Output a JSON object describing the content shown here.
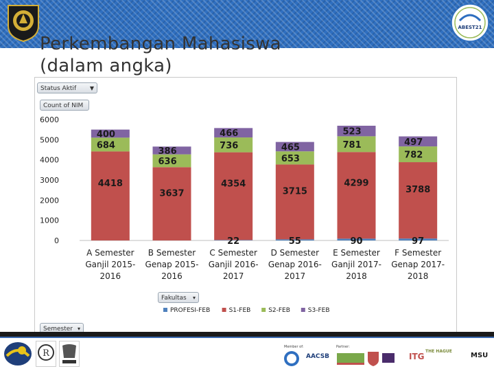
{
  "header": {
    "title_line1": "Perkembangan Mahasiswa",
    "title_line2": "(dalam angka)",
    "right_logo_text": "ABEST21"
  },
  "filters": {
    "status": "Status Aktif",
    "count": "Count of NIM",
    "fakultas": "Fakultas",
    "semester": "Semester"
  },
  "chart_data": {
    "type": "bar",
    "stacked": true,
    "categories": [
      "A Semester Ganjil 2015-2016",
      "B Semester Genap 2015-2016",
      "C Semester Ganjil 2016-2017",
      "D Semester Genap 2016-2017",
      "E Semester Ganjil 2017-2018",
      "F Semester Genap 2017-2018"
    ],
    "category_lines": [
      [
        "A Semester",
        "Ganjil 2015-",
        "2016"
      ],
      [
        "B Semester",
        "Genap 2015-",
        "2016"
      ],
      [
        "C Semester",
        "Ganjil 2016-",
        "2017"
      ],
      [
        "D Semester",
        "Genap 2016-",
        "2017"
      ],
      [
        "E Semester",
        "Ganjil 2017-",
        "2018"
      ],
      [
        "F Semester",
        "Genap 2017-",
        "2018"
      ]
    ],
    "series": [
      {
        "name": "PROFESI-FEB",
        "color": "#4f81bd",
        "values": [
          0,
          0,
          22,
          55,
          90,
          97
        ]
      },
      {
        "name": "S1-FEB",
        "color": "#c0504d",
        "values": [
          4418,
          3637,
          4354,
          3715,
          4299,
          3788
        ]
      },
      {
        "name": "S2-FEB",
        "color": "#9bbb59",
        "values": [
          684,
          636,
          736,
          653,
          781,
          782
        ]
      },
      {
        "name": "S3-FEB",
        "color": "#8064a2",
        "values": [
          400,
          386,
          466,
          465,
          523,
          497
        ]
      }
    ],
    "ylim": [
      0,
      6000
    ],
    "yticks": [
      0,
      1000,
      2000,
      3000,
      4000,
      5000,
      6000
    ],
    "legend": "bottom",
    "grid": false
  },
  "footer": {
    "member_of": "Member of:",
    "partner": "Partner:",
    "partners": [
      "AACSB",
      "ITG",
      "THE HAGUE",
      "MSU"
    ]
  }
}
